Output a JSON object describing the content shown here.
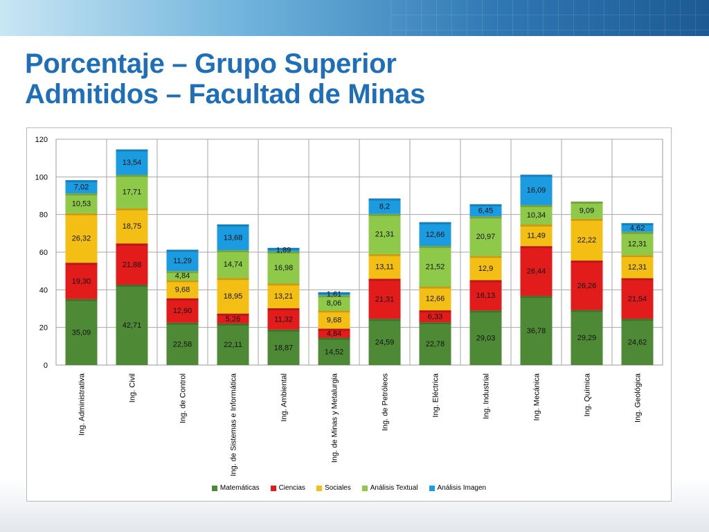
{
  "slide": {
    "title_line1": "Porcentaje – Grupo Superior",
    "title_line2": "Admitidos – Facultad de Minas"
  },
  "chart_data": {
    "type": "bar",
    "stacked": true,
    "title": "",
    "xlabel": "",
    "ylabel": "",
    "ylim": [
      0,
      120
    ],
    "yticks": [
      0,
      20,
      40,
      60,
      80,
      100,
      120
    ],
    "grid": true,
    "legend_position": "bottom",
    "categories": [
      "Ing.  Administrativa",
      "Ing.  Civil",
      "Ing.  de Control",
      "Ing.  de Sistemas e Informática",
      "Ing.  Ambiental",
      "Ing.  de Minas y Metalurgia",
      "Ing.  de Petróleos",
      "Ing.  Eléctrica",
      "Ing.  Industrial",
      "Ing.  Mecánica",
      "Ing.  Química",
      "Ing.  Geológica"
    ],
    "series": [
      {
        "name": "Matemáticas",
        "color": "#4e8a35",
        "values": [
          35.09,
          42.71,
          22.58,
          22.11,
          18.87,
          14.52,
          24.59,
          22.78,
          29.03,
          36.78,
          29.29,
          24.62
        ],
        "labels": [
          "35,09",
          "42,71",
          "22,58",
          "22,11",
          "18,87",
          "14,52",
          "24,59",
          "22,78",
          "29,03",
          "36,78",
          "29,29",
          "24,62"
        ]
      },
      {
        "name": "Ciencias",
        "color": "#e21b1b",
        "values": [
          19.3,
          21.88,
          12.9,
          5.26,
          11.32,
          4.84,
          21.31,
          6.33,
          16.13,
          26.44,
          26.26,
          21.54
        ],
        "labels": [
          "19,30",
          "21,88",
          "12,90",
          "5,26",
          "11,32",
          "4,84",
          "21,31",
          "6,33",
          "16,13",
          "26,44",
          "26,26",
          "21,54"
        ]
      },
      {
        "name": "Sociales",
        "color": "#f4bf14",
        "values": [
          26.32,
          18.75,
          9.68,
          18.95,
          13.21,
          9.68,
          13.11,
          12.66,
          12.9,
          11.49,
          22.22,
          12.31
        ],
        "labels": [
          "26,32",
          "18,75",
          "9,68",
          "18,95",
          "13,21",
          "9,68",
          "13,11",
          "12,66",
          "12,9",
          "11,49",
          "22,22",
          "12,31"
        ]
      },
      {
        "name": "Análisis Textual",
        "color": "#8fc94a",
        "values": [
          10.53,
          17.71,
          4.84,
          14.74,
          16.98,
          8.06,
          21.31,
          21.52,
          20.97,
          10.34,
          9.09,
          12.31
        ],
        "labels": [
          "10,53",
          "17,71",
          "4,84",
          "14,74",
          "16,98",
          "8,06",
          "21,31",
          "21,52",
          "20,97",
          "10,34",
          "9,09",
          "12,31"
        ]
      },
      {
        "name": "Análisis Imagen",
        "color": "#1b9be0",
        "values": [
          7.02,
          13.54,
          11.29,
          13.68,
          1.89,
          1.61,
          8.2,
          12.66,
          6.45,
          16.09,
          0,
          4.62
        ],
        "labels": [
          "7,02",
          "13,54",
          "11,29",
          "13,68",
          "1,89",
          "1,61",
          "8,2",
          "12,66",
          "6,45",
          "16,09",
          "",
          "4,62"
        ]
      }
    ]
  }
}
